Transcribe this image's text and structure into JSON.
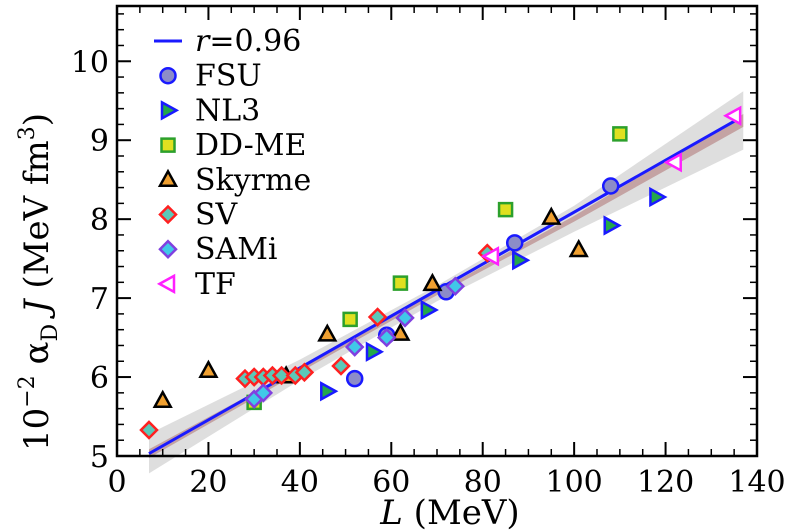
{
  "chart_data": {
    "type": "scatter",
    "xlim": [
      0,
      140
    ],
    "ylim": [
      5,
      10.7
    ],
    "xticks": [
      "0",
      "20",
      "40",
      "60",
      "80",
      "100",
      "120",
      "140"
    ],
    "yticks": [
      "5",
      "6",
      "7",
      "8",
      "9",
      "10"
    ],
    "xlabel": {
      "var": "L",
      "unit": " (MeV)"
    },
    "ylabel": {
      "prefix": "10",
      "exp": "−2",
      "alpha": "α",
      "sub": "D",
      "var": "J",
      "unit": "(MeV fm",
      "unit_exp": "3",
      "unit_close": ")"
    },
    "fit": {
      "label_var": "r",
      "label_value": "=0.96",
      "color": "#1a1aff",
      "band_color": "#d3d3d3",
      "inner_band_color": "#b98a8a",
      "line": [
        [
          7,
          5.03
        ],
        [
          135,
          9.24
        ]
      ],
      "band_upper": [
        [
          7,
          5.28
        ],
        [
          40,
          6.22
        ],
        [
          70,
          7.16
        ],
        [
          100,
          8.17
        ],
        [
          137,
          9.62
        ]
      ],
      "band_lower": [
        [
          7,
          4.78
        ],
        [
          40,
          5.96
        ],
        [
          70,
          6.96
        ],
        [
          100,
          7.84
        ],
        [
          137,
          8.88
        ]
      ]
    },
    "series": [
      {
        "name": "FSU",
        "marker": "circle",
        "fill": "#8c8cc8",
        "stroke": "#1a1aff",
        "points": [
          [
            52,
            5.98
          ],
          [
            59,
            6.53
          ],
          [
            72,
            7.08
          ],
          [
            87,
            7.7
          ],
          [
            108,
            8.42
          ]
        ]
      },
      {
        "name": "NL3",
        "marker": "triangle-right",
        "fill": "#23a84a",
        "stroke": "#1a1aff",
        "points": [
          [
            46,
            5.82
          ],
          [
            56,
            6.32
          ],
          [
            68,
            6.85
          ],
          [
            88,
            7.48
          ],
          [
            108,
            7.92
          ],
          [
            118,
            8.28
          ]
        ]
      },
      {
        "name": "DD-ME",
        "marker": "square",
        "fill": "#e0e020",
        "stroke": "#2ca02c",
        "points": [
          [
            30,
            5.68
          ],
          [
            51,
            6.73
          ],
          [
            62,
            7.19
          ],
          [
            85,
            8.12
          ],
          [
            110,
            9.08
          ]
        ]
      },
      {
        "name": "Skyrme",
        "marker": "triangle-up",
        "fill": "#f0a030",
        "stroke": "#000000",
        "points": [
          [
            10,
            5.7
          ],
          [
            20,
            6.08
          ],
          [
            37,
            6.01
          ],
          [
            46,
            6.54
          ],
          [
            62,
            6.55
          ],
          [
            69,
            7.18
          ],
          [
            95,
            8.02
          ],
          [
            101,
            7.61
          ]
        ]
      },
      {
        "name": "SV",
        "marker": "diamond",
        "fill": "#5cc8b8",
        "stroke": "#ff2020",
        "points": [
          [
            7,
            5.33
          ],
          [
            28,
            5.98
          ],
          [
            30,
            6.0
          ],
          [
            32,
            6.0
          ],
          [
            34,
            6.02
          ],
          [
            36,
            6.02
          ],
          [
            39,
            6.02
          ],
          [
            41,
            6.06
          ],
          [
            49,
            6.14
          ],
          [
            57,
            6.76
          ],
          [
            81,
            7.57
          ]
        ]
      },
      {
        "name": "SAMi",
        "marker": "diamond",
        "fill": "#40c8e8",
        "stroke": "#8040e0",
        "points": [
          [
            30,
            5.72
          ],
          [
            32,
            5.8
          ],
          [
            52,
            6.38
          ],
          [
            59,
            6.5
          ],
          [
            63,
            6.75
          ],
          [
            74,
            7.15
          ]
        ]
      },
      {
        "name": "TF",
        "marker": "triangle-left",
        "fill": "#ffffff",
        "stroke": "#ff20ff",
        "points": [
          [
            82,
            7.53
          ],
          [
            122,
            8.72
          ],
          [
            135,
            9.31
          ]
        ]
      }
    ]
  }
}
